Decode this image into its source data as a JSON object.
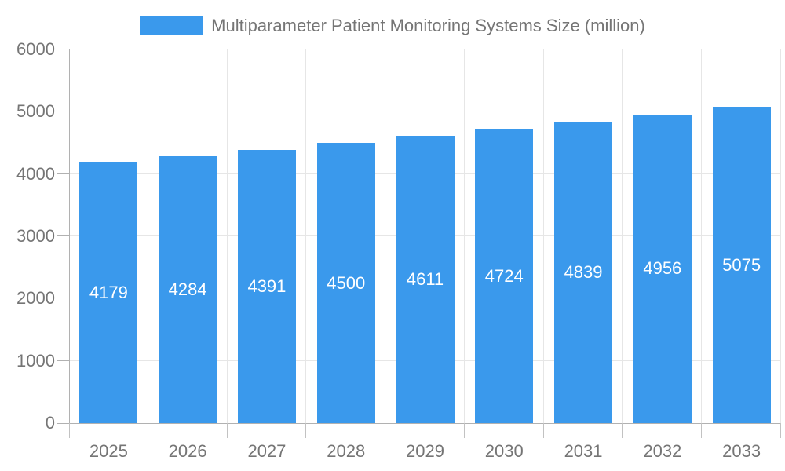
{
  "legend": {
    "label": "Multiparameter Patient Monitoring Systems Size (million)",
    "swatch_color": "#3A99EC"
  },
  "chart_data": {
    "type": "bar",
    "title": "Multiparameter Patient Monitoring Systems Size (million)",
    "categories": [
      "2025",
      "2026",
      "2027",
      "2028",
      "2029",
      "2030",
      "2031",
      "2032",
      "2033"
    ],
    "values": [
      4179,
      4284,
      4391,
      4500,
      4611,
      4724,
      4839,
      4956,
      5075
    ],
    "xlabel": "",
    "ylabel": "",
    "ylim": [
      0,
      6000
    ],
    "y_ticks": [
      0,
      1000,
      2000,
      3000,
      4000,
      5000,
      6000
    ],
    "y_tick_labels": [
      "0",
      "1000",
      "2000",
      "3000",
      "4000",
      "5000",
      "6000"
    ],
    "grid": true,
    "legend_position": "top",
    "bar_color": "#3A99EC",
    "value_label_color": "#ffffff",
    "axis_text_color": "#757575",
    "grid_color": "#e6e6e6",
    "axis_line_color": "#b1b1b1",
    "background_color": "#ffffff"
  }
}
